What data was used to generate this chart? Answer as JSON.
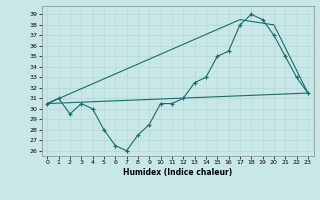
{
  "xlabel": "Humidex (Indice chaleur)",
  "bg_color": "#c8e8e8",
  "line_color": "#1a6b6b",
  "xlim": [
    -0.5,
    23.5
  ],
  "ylim": [
    25.5,
    39.8
  ],
  "yticks": [
    26,
    27,
    28,
    29,
    30,
    31,
    32,
    33,
    34,
    35,
    36,
    37,
    38,
    39
  ],
  "xticks": [
    0,
    1,
    2,
    3,
    4,
    5,
    6,
    7,
    8,
    9,
    10,
    11,
    12,
    13,
    14,
    15,
    16,
    17,
    18,
    19,
    20,
    21,
    22,
    23
  ],
  "line1_x": [
    0,
    1,
    2,
    3,
    4,
    5,
    6,
    7,
    8,
    9,
    10,
    11,
    12,
    13,
    14,
    15,
    16,
    17,
    18,
    19,
    20,
    21,
    22,
    23
  ],
  "line1_y": [
    30.5,
    31.0,
    29.5,
    30.5,
    30.0,
    28.0,
    26.5,
    26.0,
    27.5,
    28.5,
    30.5,
    30.5,
    31.0,
    32.5,
    33.0,
    35.0,
    35.5,
    38.0,
    39.0,
    38.5,
    37.0,
    35.0,
    33.0,
    31.5
  ],
  "line2_x": [
    0,
    23
  ],
  "line2_y": [
    30.5,
    31.5
  ],
  "line3_x": [
    0,
    17,
    20,
    23
  ],
  "line3_y": [
    30.5,
    38.5,
    38.0,
    31.5
  ]
}
